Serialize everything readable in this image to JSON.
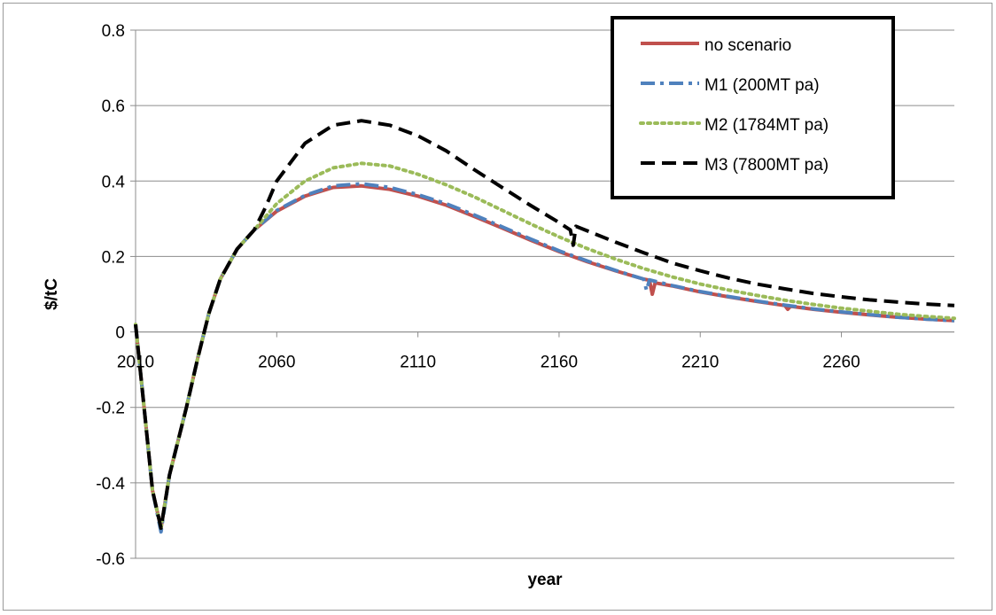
{
  "chart_data": {
    "type": "line",
    "title": "",
    "xlabel": "year",
    "ylabel": "$/tC",
    "xlim": [
      2010,
      2300
    ],
    "ylim": [
      -0.6,
      0.8
    ],
    "x_ticks": [
      "2010",
      "2060",
      "2110",
      "2160",
      "2210",
      "2260"
    ],
    "x_tick_values": [
      2010,
      2060,
      2110,
      2160,
      2210,
      2260
    ],
    "y_ticks": [
      "-0.6",
      "-0.4",
      "-0.2",
      "0",
      "0.2",
      "0.4",
      "0.6",
      "0.8"
    ],
    "y_tick_values": [
      -0.6,
      -0.4,
      -0.2,
      0,
      0.2,
      0.4,
      0.6,
      0.8
    ],
    "grid": "horizontal",
    "legend_position": "top-right",
    "series": [
      {
        "name": "no scenario",
        "color": "#c0504d",
        "dash": "solid",
        "points": [
          [
            2010,
            0.02
          ],
          [
            2013,
            -0.2
          ],
          [
            2016,
            -0.42
          ],
          [
            2019,
            -0.52
          ],
          [
            2022,
            -0.38
          ],
          [
            2028,
            -0.2
          ],
          [
            2032,
            -0.07
          ],
          [
            2036,
            0.05
          ],
          [
            2040,
            0.14
          ],
          [
            2046,
            0.22
          ],
          [
            2052,
            0.27
          ],
          [
            2060,
            0.32
          ],
          [
            2070,
            0.36
          ],
          [
            2080,
            0.383
          ],
          [
            2090,
            0.387
          ],
          [
            2100,
            0.378
          ],
          [
            2110,
            0.36
          ],
          [
            2120,
            0.336
          ],
          [
            2130,
            0.306
          ],
          [
            2140,
            0.275
          ],
          [
            2150,
            0.243
          ],
          [
            2160,
            0.213
          ],
          [
            2170,
            0.186
          ],
          [
            2180,
            0.162
          ],
          [
            2190,
            0.14
          ],
          [
            2192,
            0.137
          ],
          [
            2193,
            0.1
          ],
          [
            2194,
            0.13
          ],
          [
            2200,
            0.122
          ],
          [
            2210,
            0.106
          ],
          [
            2220,
            0.093
          ],
          [
            2230,
            0.081
          ],
          [
            2240,
            0.07
          ],
          [
            2241,
            0.06
          ],
          [
            2242,
            0.068
          ],
          [
            2250,
            0.06
          ],
          [
            2260,
            0.052
          ],
          [
            2270,
            0.045
          ],
          [
            2280,
            0.039
          ],
          [
            2290,
            0.034
          ],
          [
            2300,
            0.03
          ]
        ]
      },
      {
        "name": "M1 (200MT pa)",
        "color": "#4f81bd",
        "dash": "dashdot",
        "points": [
          [
            2010,
            0.02
          ],
          [
            2013,
            -0.2
          ],
          [
            2016,
            -0.42
          ],
          [
            2019,
            -0.53
          ],
          [
            2022,
            -0.38
          ],
          [
            2028,
            -0.2
          ],
          [
            2032,
            -0.07
          ],
          [
            2036,
            0.05
          ],
          [
            2040,
            0.14
          ],
          [
            2046,
            0.22
          ],
          [
            2052,
            0.27
          ],
          [
            2060,
            0.322
          ],
          [
            2070,
            0.362
          ],
          [
            2080,
            0.387
          ],
          [
            2090,
            0.393
          ],
          [
            2100,
            0.383
          ],
          [
            2110,
            0.364
          ],
          [
            2120,
            0.34
          ],
          [
            2130,
            0.31
          ],
          [
            2140,
            0.278
          ],
          [
            2150,
            0.246
          ],
          [
            2160,
            0.215
          ],
          [
            2170,
            0.188
          ],
          [
            2180,
            0.163
          ],
          [
            2190,
            0.14
          ],
          [
            2191,
            0.11
          ],
          [
            2192,
            0.138
          ],
          [
            2200,
            0.123
          ],
          [
            2210,
            0.107
          ],
          [
            2220,
            0.094
          ],
          [
            2230,
            0.082
          ],
          [
            2240,
            0.071
          ],
          [
            2250,
            0.061
          ],
          [
            2260,
            0.053
          ],
          [
            2270,
            0.046
          ],
          [
            2280,
            0.039
          ],
          [
            2290,
            0.034
          ],
          [
            2300,
            0.03
          ]
        ]
      },
      {
        "name": "M2 (1784MT pa)",
        "color": "#9bbb59",
        "dash": "dotted",
        "points": [
          [
            2010,
            0.02
          ],
          [
            2013,
            -0.2
          ],
          [
            2016,
            -0.42
          ],
          [
            2019,
            -0.52
          ],
          [
            2022,
            -0.38
          ],
          [
            2028,
            -0.2
          ],
          [
            2032,
            -0.07
          ],
          [
            2036,
            0.05
          ],
          [
            2040,
            0.14
          ],
          [
            2046,
            0.22
          ],
          [
            2052,
            0.27
          ],
          [
            2060,
            0.34
          ],
          [
            2070,
            0.4
          ],
          [
            2080,
            0.435
          ],
          [
            2090,
            0.447
          ],
          [
            2100,
            0.44
          ],
          [
            2110,
            0.418
          ],
          [
            2120,
            0.39
          ],
          [
            2130,
            0.358
          ],
          [
            2140,
            0.322
          ],
          [
            2150,
            0.286
          ],
          [
            2160,
            0.252
          ],
          [
            2170,
            0.221
          ],
          [
            2180,
            0.193
          ],
          [
            2190,
            0.168
          ],
          [
            2200,
            0.146
          ],
          [
            2210,
            0.127
          ],
          [
            2220,
            0.111
          ],
          [
            2230,
            0.097
          ],
          [
            2240,
            0.084
          ],
          [
            2250,
            0.073
          ],
          [
            2260,
            0.063
          ],
          [
            2270,
            0.055
          ],
          [
            2280,
            0.047
          ],
          [
            2290,
            0.041
          ],
          [
            2300,
            0.036
          ]
        ]
      },
      {
        "name": "M3 (7800MT pa)",
        "color": "#000000",
        "dash": "dashed",
        "points": [
          [
            2010,
            0.02
          ],
          [
            2013,
            -0.2
          ],
          [
            2016,
            -0.42
          ],
          [
            2019,
            -0.52
          ],
          [
            2022,
            -0.38
          ],
          [
            2028,
            -0.2
          ],
          [
            2032,
            -0.07
          ],
          [
            2036,
            0.05
          ],
          [
            2040,
            0.14
          ],
          [
            2046,
            0.22
          ],
          [
            2052,
            0.27
          ],
          [
            2056,
            0.33
          ],
          [
            2060,
            0.4
          ],
          [
            2070,
            0.5
          ],
          [
            2080,
            0.548
          ],
          [
            2090,
            0.56
          ],
          [
            2100,
            0.548
          ],
          [
            2110,
            0.52
          ],
          [
            2120,
            0.48
          ],
          [
            2130,
            0.43
          ],
          [
            2140,
            0.382
          ],
          [
            2150,
            0.335
          ],
          [
            2160,
            0.29
          ],
          [
            2164,
            0.27
          ],
          [
            2165,
            0.23
          ],
          [
            2166,
            0.28
          ],
          [
            2170,
            0.268
          ],
          [
            2180,
            0.238
          ],
          [
            2190,
            0.21
          ],
          [
            2200,
            0.183
          ],
          [
            2210,
            0.162
          ],
          [
            2220,
            0.143
          ],
          [
            2230,
            0.127
          ],
          [
            2240,
            0.114
          ],
          [
            2250,
            0.102
          ],
          [
            2260,
            0.093
          ],
          [
            2270,
            0.085
          ],
          [
            2280,
            0.079
          ],
          [
            2290,
            0.074
          ],
          [
            2300,
            0.07
          ]
        ]
      }
    ]
  }
}
